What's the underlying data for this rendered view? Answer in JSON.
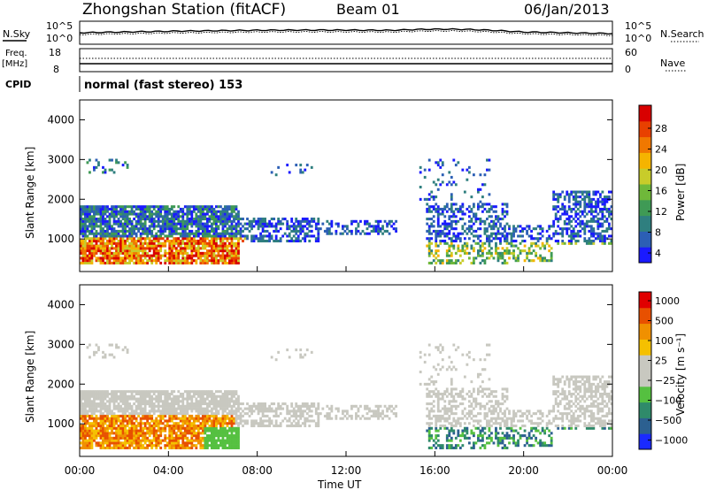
{
  "header": {
    "station": "Zhongshan Station (fitACF)",
    "beam": "Beam 01",
    "date": "06/Jan/2013"
  },
  "strip_panel": {
    "noise_left_label": "N.Sky",
    "noise_right_label": "N.Search",
    "noise_ticks": [
      "10^5",
      "10^0"
    ],
    "freq_label": "Freq.",
    "freq_unit": "[MHz]",
    "freq_ticks": [
      "18",
      "8"
    ],
    "nave_label": "Nave",
    "nave_ticks": [
      "60",
      "0"
    ],
    "cpid_label": "CPID",
    "cpid_value": "normal (fast stereo) 153"
  },
  "colors": {
    "power_scale": [
      "#1a1aff",
      "#2c5fb5",
      "#2f7f7f",
      "#3f9a55",
      "#6fb83a",
      "#c8cc2a",
      "#f5b400",
      "#f07800",
      "#e84000",
      "#d80000"
    ],
    "velocity_scale": [
      "#1a2aff",
      "#2c6090",
      "#2f8a6a",
      "#55c040",
      "#c8c8c0",
      "#c8c8c0",
      "#f5c000",
      "#f09000",
      "#e85000",
      "#e00000"
    ]
  },
  "chart_data": [
    {
      "type": "heatmap",
      "name": "power",
      "ylabel": "Slant Range [km]",
      "yticks": [
        "4000",
        "3000",
        "2000",
        "1000"
      ],
      "xticks": [
        "00:00",
        "04:00",
        "08:00",
        "12:00",
        "16:00",
        "20:00",
        "00:00"
      ],
      "colorbar_label": "Power [dB]",
      "colorbar_ticks": [
        "28",
        "24",
        "20",
        "16",
        "12",
        "8",
        "4"
      ],
      "yrange_km": [
        180,
        4500
      ],
      "xrange_hours": [
        0,
        24
      ]
    },
    {
      "type": "heatmap",
      "name": "velocity",
      "ylabel": "Slant Range [km]",
      "yticks": [
        "4000",
        "3000",
        "2000",
        "1000"
      ],
      "xticks": [
        "00:00",
        "04:00",
        "08:00",
        "12:00",
        "16:00",
        "20:00",
        "00:00"
      ],
      "xlabel": "Time UT",
      "colorbar_label": "Velocity [m s⁻¹]",
      "colorbar_ticks": [
        "1000",
        "500",
        "100",
        "25",
        "−25",
        "−100",
        "−500",
        "−1000"
      ],
      "yrange_km": [
        180,
        4500
      ],
      "xrange_hours": [
        0,
        24
      ]
    }
  ]
}
